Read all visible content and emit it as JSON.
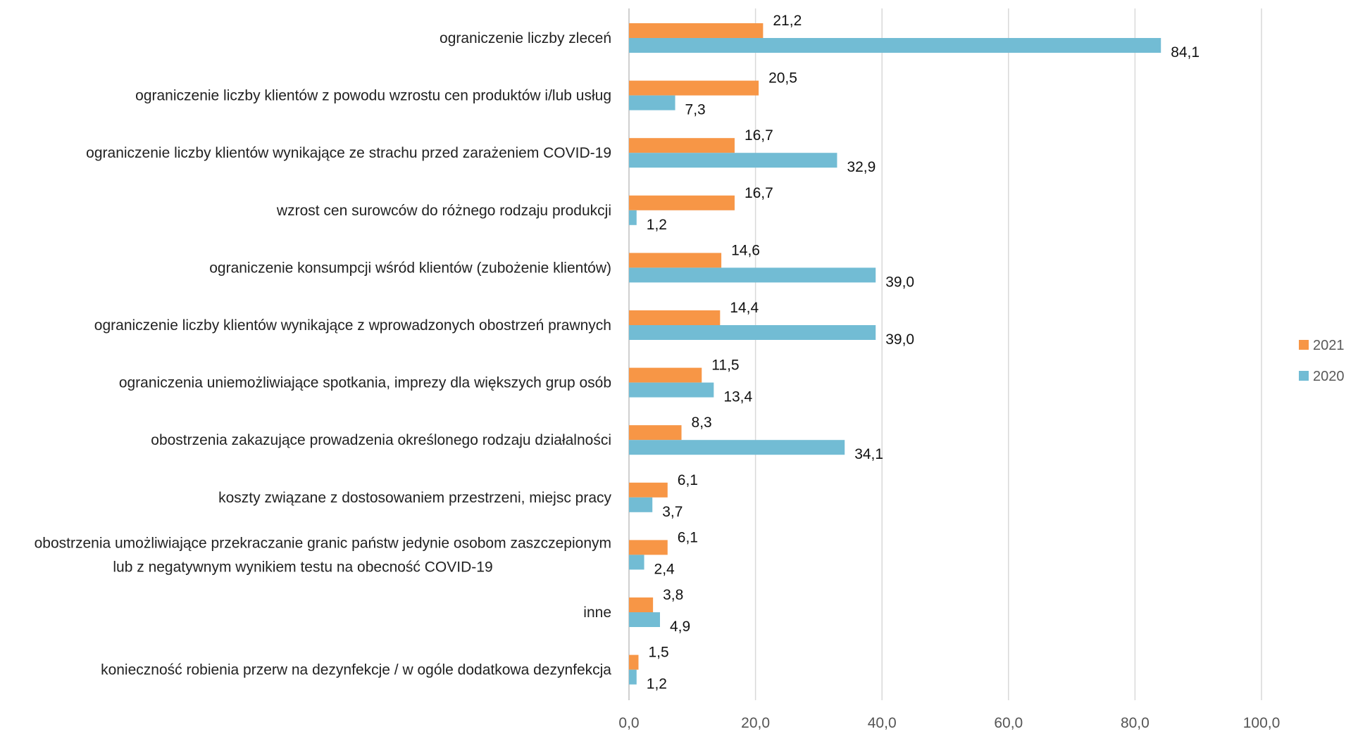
{
  "chart_data": {
    "type": "bar",
    "orientation": "horizontal",
    "categories": [
      [
        "ograniczenie liczby zleceń"
      ],
      [
        "ograniczenie liczby klientów z powodu wzrostu cen produktów i/lub usług"
      ],
      [
        "ograniczenie liczby klientów wynikające ze strachu przed zarażeniem COVID-19"
      ],
      [
        "wzrost cen surowców do różnego rodzaju produkcji"
      ],
      [
        "ograniczenie konsumpcji wśród klientów (zubożenie klientów)"
      ],
      [
        "ograniczenie liczby klientów wynikające z wprowadzonych obostrzeń prawnych"
      ],
      [
        "ograniczenia uniemożliwiające spotkania, imprezy dla większych grup osób"
      ],
      [
        "obostrzenia zakazujące prowadzenia określonego rodzaju działalności"
      ],
      [
        "koszty związane z dostosowaniem przestrzeni, miejsc pracy"
      ],
      [
        "obostrzenia umożliwiające przekraczanie granic państw jedynie osobom zaszczepionym",
        "lub z negatywnym wynikiem testu na obecność COVID-19"
      ],
      [
        "inne"
      ],
      [
        "konieczność robienia przerw na dezynfekcje / w ogóle dodatkowa dezynfekcja"
      ]
    ],
    "series": [
      {
        "name": "2021",
        "color": "#f79646",
        "values": [
          21.2,
          20.5,
          16.7,
          16.7,
          14.6,
          14.4,
          11.5,
          8.3,
          6.1,
          6.1,
          3.8,
          1.5
        ],
        "labels": [
          "21,2",
          "20,5",
          "16,7",
          "16,7",
          "14,6",
          "14,4",
          "11,5",
          "8,3",
          "6,1",
          "6,1",
          "3,8",
          "1,5"
        ]
      },
      {
        "name": "2020",
        "color": "#72bcd4",
        "values": [
          84.1,
          7.3,
          32.9,
          1.2,
          39.0,
          39.0,
          13.4,
          34.1,
          3.7,
          2.4,
          4.9,
          1.2
        ],
        "labels": [
          "84,1",
          "7,3",
          "32,9",
          "1,2",
          "39,0",
          "39,0",
          "13,4",
          "34,1",
          "3,7",
          "2,4",
          "4,9",
          "1,2"
        ]
      }
    ],
    "xlim": [
      0,
      100
    ],
    "xticks": [
      "0,0",
      "20,0",
      "40,0",
      "60,0",
      "80,0",
      "100,0"
    ],
    "title": "",
    "xlabel": "",
    "ylabel": "",
    "grid": "vertical",
    "legend": "right"
  }
}
